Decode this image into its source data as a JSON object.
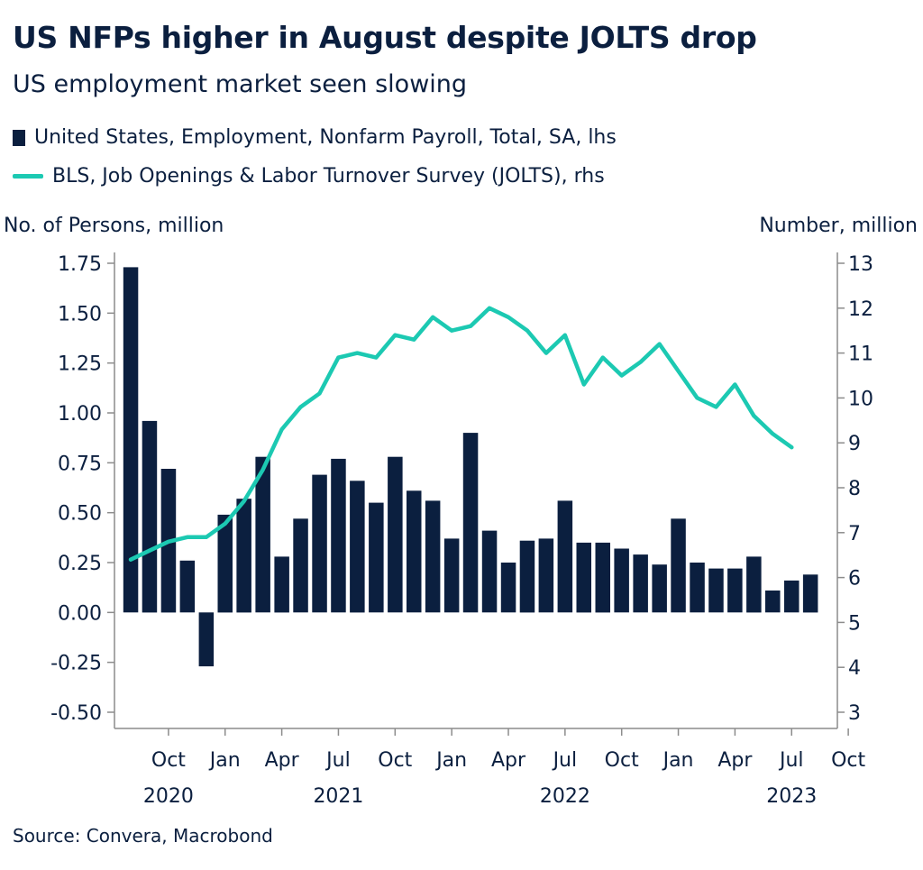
{
  "title": "US NFPs higher in August despite JOLTS drop",
  "subtitle": "US employment market seen slowing",
  "legend": {
    "bars": "United States, Employment, Nonfarm Payroll, Total, SA, lhs",
    "line": "BLS, Job Openings & Labor Turnover Survey (JOLTS), rhs"
  },
  "axis_labels": {
    "left": "No. of Persons, million",
    "right": "Number, million"
  },
  "source": "Source: Convera, Macrobond",
  "colors": {
    "bars": "#0b1f3f",
    "line": "#1cc9b2",
    "axis": "#8c8c8c"
  },
  "chart_data": {
    "type": "bar+line",
    "title": "US NFPs higher in August despite JOLTS drop",
    "subtitle": "US employment market seen slowing",
    "months": [
      "2020-08",
      "2020-09",
      "2020-10",
      "2020-11",
      "2020-12",
      "2021-01",
      "2021-02",
      "2021-03",
      "2021-04",
      "2021-05",
      "2021-06",
      "2021-07",
      "2021-08",
      "2021-09",
      "2021-10",
      "2021-11",
      "2021-12",
      "2022-01",
      "2022-02",
      "2022-03",
      "2022-04",
      "2022-05",
      "2022-06",
      "2022-07",
      "2022-08",
      "2022-09",
      "2022-10",
      "2022-11",
      "2022-12",
      "2023-01",
      "2023-02",
      "2023-03",
      "2023-04",
      "2023-05",
      "2023-06",
      "2023-07",
      "2023-08"
    ],
    "series": [
      {
        "name": "United States, Employment, Nonfarm Payroll, Total, SA, lhs",
        "type": "bar",
        "axis": "left",
        "values": [
          1.73,
          0.96,
          0.72,
          0.26,
          -0.27,
          0.49,
          0.57,
          0.78,
          0.28,
          0.47,
          0.69,
          0.77,
          0.66,
          0.55,
          0.78,
          0.61,
          0.56,
          0.37,
          0.9,
          0.41,
          0.25,
          0.36,
          0.37,
          0.56,
          0.35,
          0.35,
          0.32,
          0.29,
          0.24,
          0.47,
          0.25,
          0.22,
          0.22,
          0.28,
          0.11,
          0.16,
          0.19
        ]
      },
      {
        "name": "BLS, Job Openings & Labor Turnover Survey (JOLTS), rhs",
        "type": "line",
        "axis": "right",
        "values": [
          6.4,
          6.6,
          6.8,
          6.9,
          6.9,
          7.2,
          7.7,
          8.4,
          9.3,
          9.8,
          10.1,
          10.9,
          11.0,
          10.9,
          11.4,
          11.3,
          11.8,
          11.5,
          11.6,
          12.0,
          11.8,
          11.5,
          11.0,
          11.4,
          10.3,
          10.9,
          10.5,
          10.8,
          11.2,
          10.6,
          10.0,
          9.8,
          10.3,
          9.6,
          9.2,
          8.9,
          null
        ]
      }
    ],
    "left_axis": {
      "label": "No. of Persons, million",
      "min": -0.5,
      "max": 1.75,
      "range": [
        -0.6,
        1.85
      ],
      "ticks": [
        "1.75",
        "1.50",
        "1.25",
        "1.00",
        "0.75",
        "0.50",
        "0.25",
        "0.00",
        "-0.25",
        "-0.50"
      ]
    },
    "right_axis": {
      "label": "Number, million",
      "min": 3,
      "max": 13,
      "range": [
        2.6,
        13.0
      ],
      "ticks": [
        "13",
        "12",
        "11",
        "10",
        "9",
        "8",
        "7",
        "6",
        "5",
        "4",
        "3"
      ]
    },
    "x_ticks": [
      {
        "label": "Oct",
        "month": "2020-10"
      },
      {
        "label": "Jan",
        "month": "2021-01"
      },
      {
        "label": "Apr",
        "month": "2021-04"
      },
      {
        "label": "Jul",
        "month": "2021-07"
      },
      {
        "label": "Oct",
        "month": "2021-10"
      },
      {
        "label": "Jan",
        "month": "2022-01"
      },
      {
        "label": "Apr",
        "month": "2022-04"
      },
      {
        "label": "Jul",
        "month": "2022-07"
      },
      {
        "label": "Oct",
        "month": "2022-10"
      },
      {
        "label": "Jan",
        "month": "2023-01"
      },
      {
        "label": "Apr",
        "month": "2023-04"
      },
      {
        "label": "Jul",
        "month": "2023-07"
      },
      {
        "label": "Oct",
        "month": "2023-10"
      }
    ],
    "year_labels": [
      {
        "label": "2020",
        "month": "2020-10"
      },
      {
        "label": "2021",
        "month": "2021-07"
      },
      {
        "label": "2022",
        "month": "2022-07"
      },
      {
        "label": "2023",
        "month": "2023-07"
      }
    ]
  }
}
